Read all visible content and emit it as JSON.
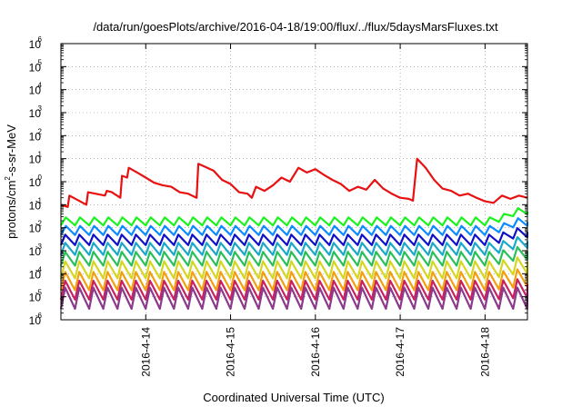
{
  "chart_data": {
    "type": "line",
    "title": "/data/run/goesPlots/archive/2016-04-18/19:00/flux/../flux/5daysMarsFluxes.txt",
    "xlabel": "Coordinated Universal Time (UTC)",
    "ylabel": "protons/cm2-s-sr-MeV",
    "ylabel_parts": {
      "base": "protons/cm",
      "sup": "2",
      "rest": "-s-sr-MeV"
    },
    "xlim": [
      0,
      5.5
    ],
    "x_ticks": [
      {
        "x": 1,
        "label": "2016-4-14"
      },
      {
        "x": 2,
        "label": "2016-4-15"
      },
      {
        "x": 3,
        "label": "2016-4-16"
      },
      {
        "x": 4,
        "label": "2016-4-17"
      },
      {
        "x": 5,
        "label": "2016-4-18"
      }
    ],
    "x_tick_note": "x = days since 2016-04-13 00:00 UTC",
    "y_scale": "log",
    "ylim": [
      1e-06,
      1000000.0
    ],
    "y_ticks": [
      {
        "exp": "-6"
      },
      {
        "exp": "-5"
      },
      {
        "exp": "-4"
      },
      {
        "exp": "-3"
      },
      {
        "exp": "-2"
      },
      {
        "exp": "-1"
      },
      {
        "exp": "0"
      },
      {
        "exp": "1"
      },
      {
        "exp": "2"
      },
      {
        "exp": "3"
      },
      {
        "exp": "4"
      },
      {
        "exp": "5"
      },
      {
        "exp": "6"
      }
    ],
    "grid": true,
    "series": [
      {
        "color": "#e81010",
        "x": [
          0,
          0.08,
          0.1,
          0.3,
          0.32,
          0.52,
          0.54,
          0.6,
          0.7,
          0.72,
          0.78,
          0.8,
          0.9,
          1.0,
          1.1,
          1.2,
          1.3,
          1.4,
          1.5,
          1.6,
          1.62,
          1.8,
          1.9,
          2.0,
          2.1,
          2.2,
          2.25,
          2.3,
          2.4,
          2.5,
          2.6,
          2.7,
          2.8,
          2.9,
          3.0,
          3.1,
          3.2,
          3.3,
          3.4,
          3.5,
          3.6,
          3.7,
          3.8,
          3.9,
          4.0,
          4.1,
          4.15,
          4.2,
          4.3,
          4.4,
          4.5,
          4.6,
          4.7,
          4.8,
          4.9,
          5.0,
          5.1,
          5.2,
          5.3,
          5.4,
          5.5
        ],
        "y": [
          0.1,
          0.08,
          0.25,
          0.1,
          0.35,
          0.25,
          0.4,
          0.35,
          0.2,
          1.8,
          1.5,
          4.0,
          2.5,
          1.5,
          0.9,
          0.7,
          0.6,
          0.35,
          0.3,
          0.2,
          6.0,
          3.0,
          1.2,
          0.8,
          0.35,
          0.3,
          0.2,
          0.6,
          0.4,
          0.7,
          1.5,
          1.0,
          4.0,
          2.5,
          3.5,
          2.0,
          1.2,
          0.8,
          0.4,
          0.6,
          0.45,
          1.2,
          0.5,
          0.3,
          0.2,
          0.18,
          0.15,
          10.0,
          4.0,
          1.2,
          0.5,
          0.4,
          0.25,
          0.3,
          0.2,
          0.14,
          0.12,
          0.25,
          0.18,
          0.25,
          0.2
        ]
      },
      {
        "color": "#19f21b",
        "base": 0.028,
        "drop": 0.45,
        "rise": 0.35,
        "end_factor": 3.0
      },
      {
        "color": "#0e8cff",
        "base": 0.012,
        "drop": 0.4,
        "rise": 0.35,
        "end_factor": 2.5
      },
      {
        "color": "#1010c8",
        "base": 0.005,
        "drop": 0.35,
        "rise": 0.3,
        "end_factor": 2.2
      },
      {
        "color": "#1aa9c8",
        "base": 0.0022,
        "drop": 0.3,
        "rise": 0.3,
        "end_factor": 2.0
      },
      {
        "color": "#2bbf5a",
        "base": 0.0009,
        "drop": 0.25,
        "rise": 0.3,
        "end_factor": 1.8
      },
      {
        "color": "#d6d622",
        "base": 0.00035,
        "drop": 0.18,
        "rise": 0.3,
        "end_factor": 1.6
      },
      {
        "color": "#f2a010",
        "base": 0.00012,
        "drop": 0.16,
        "rise": 0.3,
        "end_factor": 1.4
      },
      {
        "color": "#c82060",
        "base": 5e-05,
        "drop": 0.15,
        "rise": 0.3,
        "end_factor": 1.2
      },
      {
        "color": "#8b3b8b",
        "base": 2.5e-05,
        "drop": 0.12,
        "rise": 0.3,
        "end_factor": 1.0
      }
    ],
    "oscillation_period": 0.1666
  }
}
